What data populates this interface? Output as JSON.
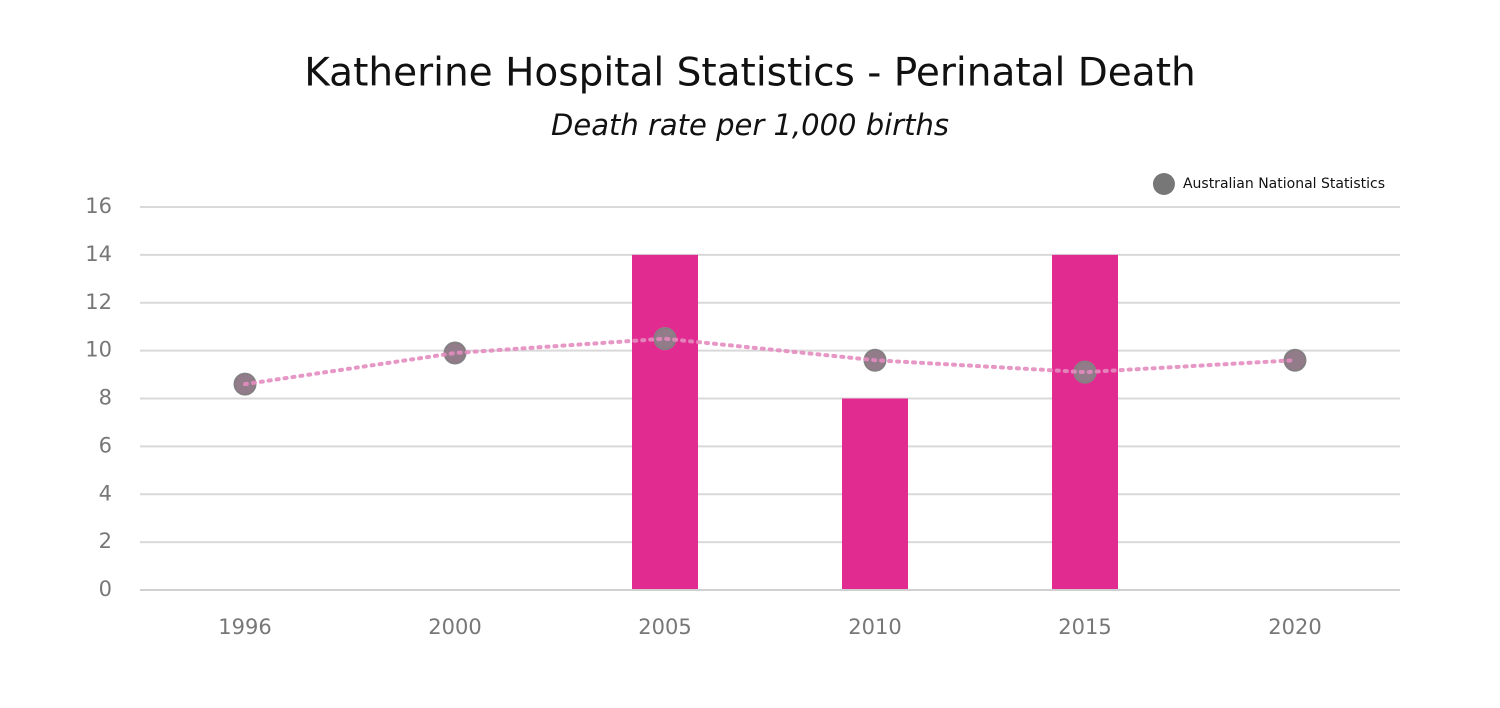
{
  "chart_data": {
    "type": "bar",
    "title": "Katherine Hospital Statistics - Perinatal Death",
    "subtitle": "Death rate per 1,000 births",
    "categories": [
      "1996",
      "2000",
      "2005",
      "2010",
      "2015",
      "2020"
    ],
    "series": [
      {
        "type": "bar",
        "color": "#e22b91",
        "values": [
          null,
          null,
          14,
          8,
          14,
          null
        ]
      },
      {
        "type": "line",
        "name": "Australian National Statistics",
        "color": "#777777",
        "line_color": "#e48cbf",
        "values": [
          8.6,
          9.9,
          10.5,
          9.6,
          9.1,
          9.6
        ]
      }
    ],
    "ylim": [
      0,
      16
    ],
    "yticks": [
      0,
      2,
      4,
      6,
      8,
      10,
      12,
      14,
      16
    ],
    "grid": true,
    "legend": "top-right"
  }
}
